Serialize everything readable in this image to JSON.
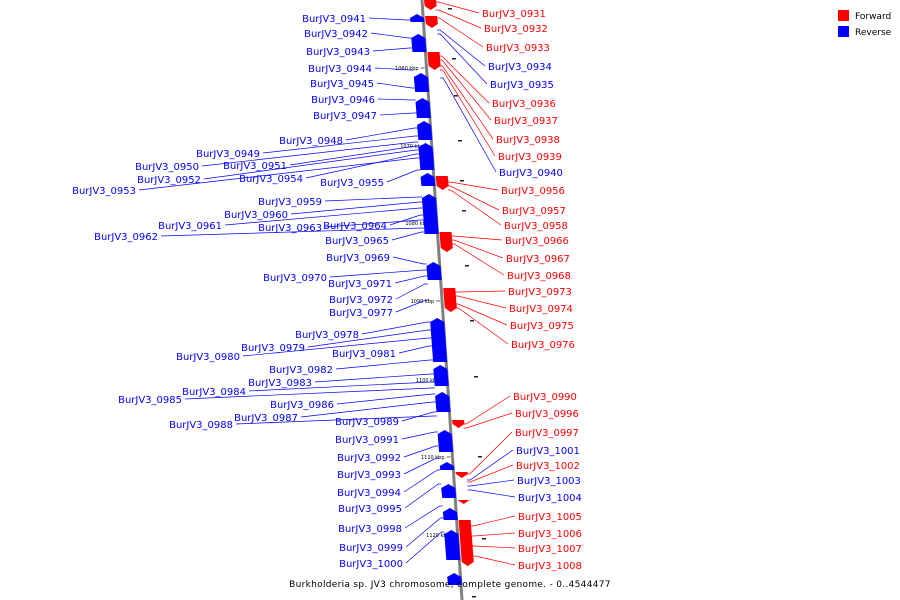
{
  "caption": "Burkholderia sp. JV3 chromosome, complete genome. - 0..4544477",
  "legend": {
    "placement": "top-right",
    "items": [
      {
        "label": "Forward",
        "color": "#ff0000"
      },
      {
        "label": "Reverse",
        "color": "#0000ff"
      }
    ]
  },
  "colors": {
    "forward": "#ff0000",
    "reverse": "#0000ff",
    "backbone": "#808080"
  },
  "ticks": [
    "1060 kbp",
    "1070 kbp",
    "1080 kbp",
    "1090 kbp",
    "1100 kbp",
    "1110 kbp",
    "1120 kbp"
  ],
  "genes_reverse": [
    "BurJV3_0941",
    "BurJV3_0942",
    "BurJV3_0943",
    "BurJV3_0944",
    "BurJV3_0945",
    "BurJV3_0946",
    "BurJV3_0947",
    "BurJV3_0948",
    "BurJV3_0949",
    "BurJV3_0950",
    "BurJV3_0951",
    "BurJV3_0952",
    "BurJV3_0954",
    "BurJV3_0953",
    "BurJV3_0955",
    "BurJV3_0959",
    "BurJV3_0960",
    "BurJV3_0961",
    "BurJV3_0964",
    "BurJV3_0963",
    "BurJV3_0962",
    "BurJV3_0965",
    "BurJV3_0969",
    "BurJV3_0970",
    "BurJV3_0971",
    "BurJV3_0972",
    "BurJV3_0977",
    "BurJV3_0978",
    "BurJV3_0979",
    "BurJV3_0980",
    "BurJV3_0981",
    "BurJV3_0982",
    "BurJV3_0983",
    "BurJV3_0984",
    "BurJV3_0985",
    "BurJV3_0986",
    "BurJV3_0987",
    "BurJV3_0989",
    "BurJV3_0988",
    "BurJV3_0991",
    "BurJV3_0992",
    "BurJV3_0993",
    "BurJV3_0994",
    "BurJV3_0995",
    "BurJV3_0998",
    "BurJV3_0999",
    "BurJV3_1000"
  ],
  "genes_right": [
    {
      "name": "BurJV3_0931",
      "strand": "forward"
    },
    {
      "name": "BurJV3_0932",
      "strand": "forward"
    },
    {
      "name": "BurJV3_0933",
      "strand": "forward"
    },
    {
      "name": "BurJV3_0934",
      "strand": "reverse"
    },
    {
      "name": "BurJV3_0935",
      "strand": "reverse"
    },
    {
      "name": "BurJV3_0936",
      "strand": "forward"
    },
    {
      "name": "BurJV3_0937",
      "strand": "forward"
    },
    {
      "name": "BurJV3_0938",
      "strand": "forward"
    },
    {
      "name": "BurJV3_0939",
      "strand": "forward"
    },
    {
      "name": "BurJV3_0940",
      "strand": "reverse"
    },
    {
      "name": "BurJV3_0956",
      "strand": "forward"
    },
    {
      "name": "BurJV3_0957",
      "strand": "forward"
    },
    {
      "name": "BurJV3_0958",
      "strand": "forward"
    },
    {
      "name": "BurJV3_0966",
      "strand": "forward"
    },
    {
      "name": "BurJV3_0967",
      "strand": "forward"
    },
    {
      "name": "BurJV3_0968",
      "strand": "forward"
    },
    {
      "name": "BurJV3_0973",
      "strand": "forward"
    },
    {
      "name": "BurJV3_0974",
      "strand": "forward"
    },
    {
      "name": "BurJV3_0975",
      "strand": "forward"
    },
    {
      "name": "BurJV3_0976",
      "strand": "forward"
    },
    {
      "name": "BurJV3_0990",
      "strand": "forward"
    },
    {
      "name": "BurJV3_0996",
      "strand": "forward"
    },
    {
      "name": "BurJV3_0997",
      "strand": "forward"
    },
    {
      "name": "BurJV3_1001",
      "strand": "reverse"
    },
    {
      "name": "BurJV3_1002",
      "strand": "forward"
    },
    {
      "name": "BurJV3_1003",
      "strand": "reverse"
    },
    {
      "name": "BurJV3_1004",
      "strand": "reverse"
    },
    {
      "name": "BurJV3_1005",
      "strand": "forward"
    },
    {
      "name": "BurJV3_1006",
      "strand": "forward"
    },
    {
      "name": "BurJV3_1007",
      "strand": "forward"
    },
    {
      "name": "BurJV3_1008",
      "strand": "forward"
    }
  ]
}
